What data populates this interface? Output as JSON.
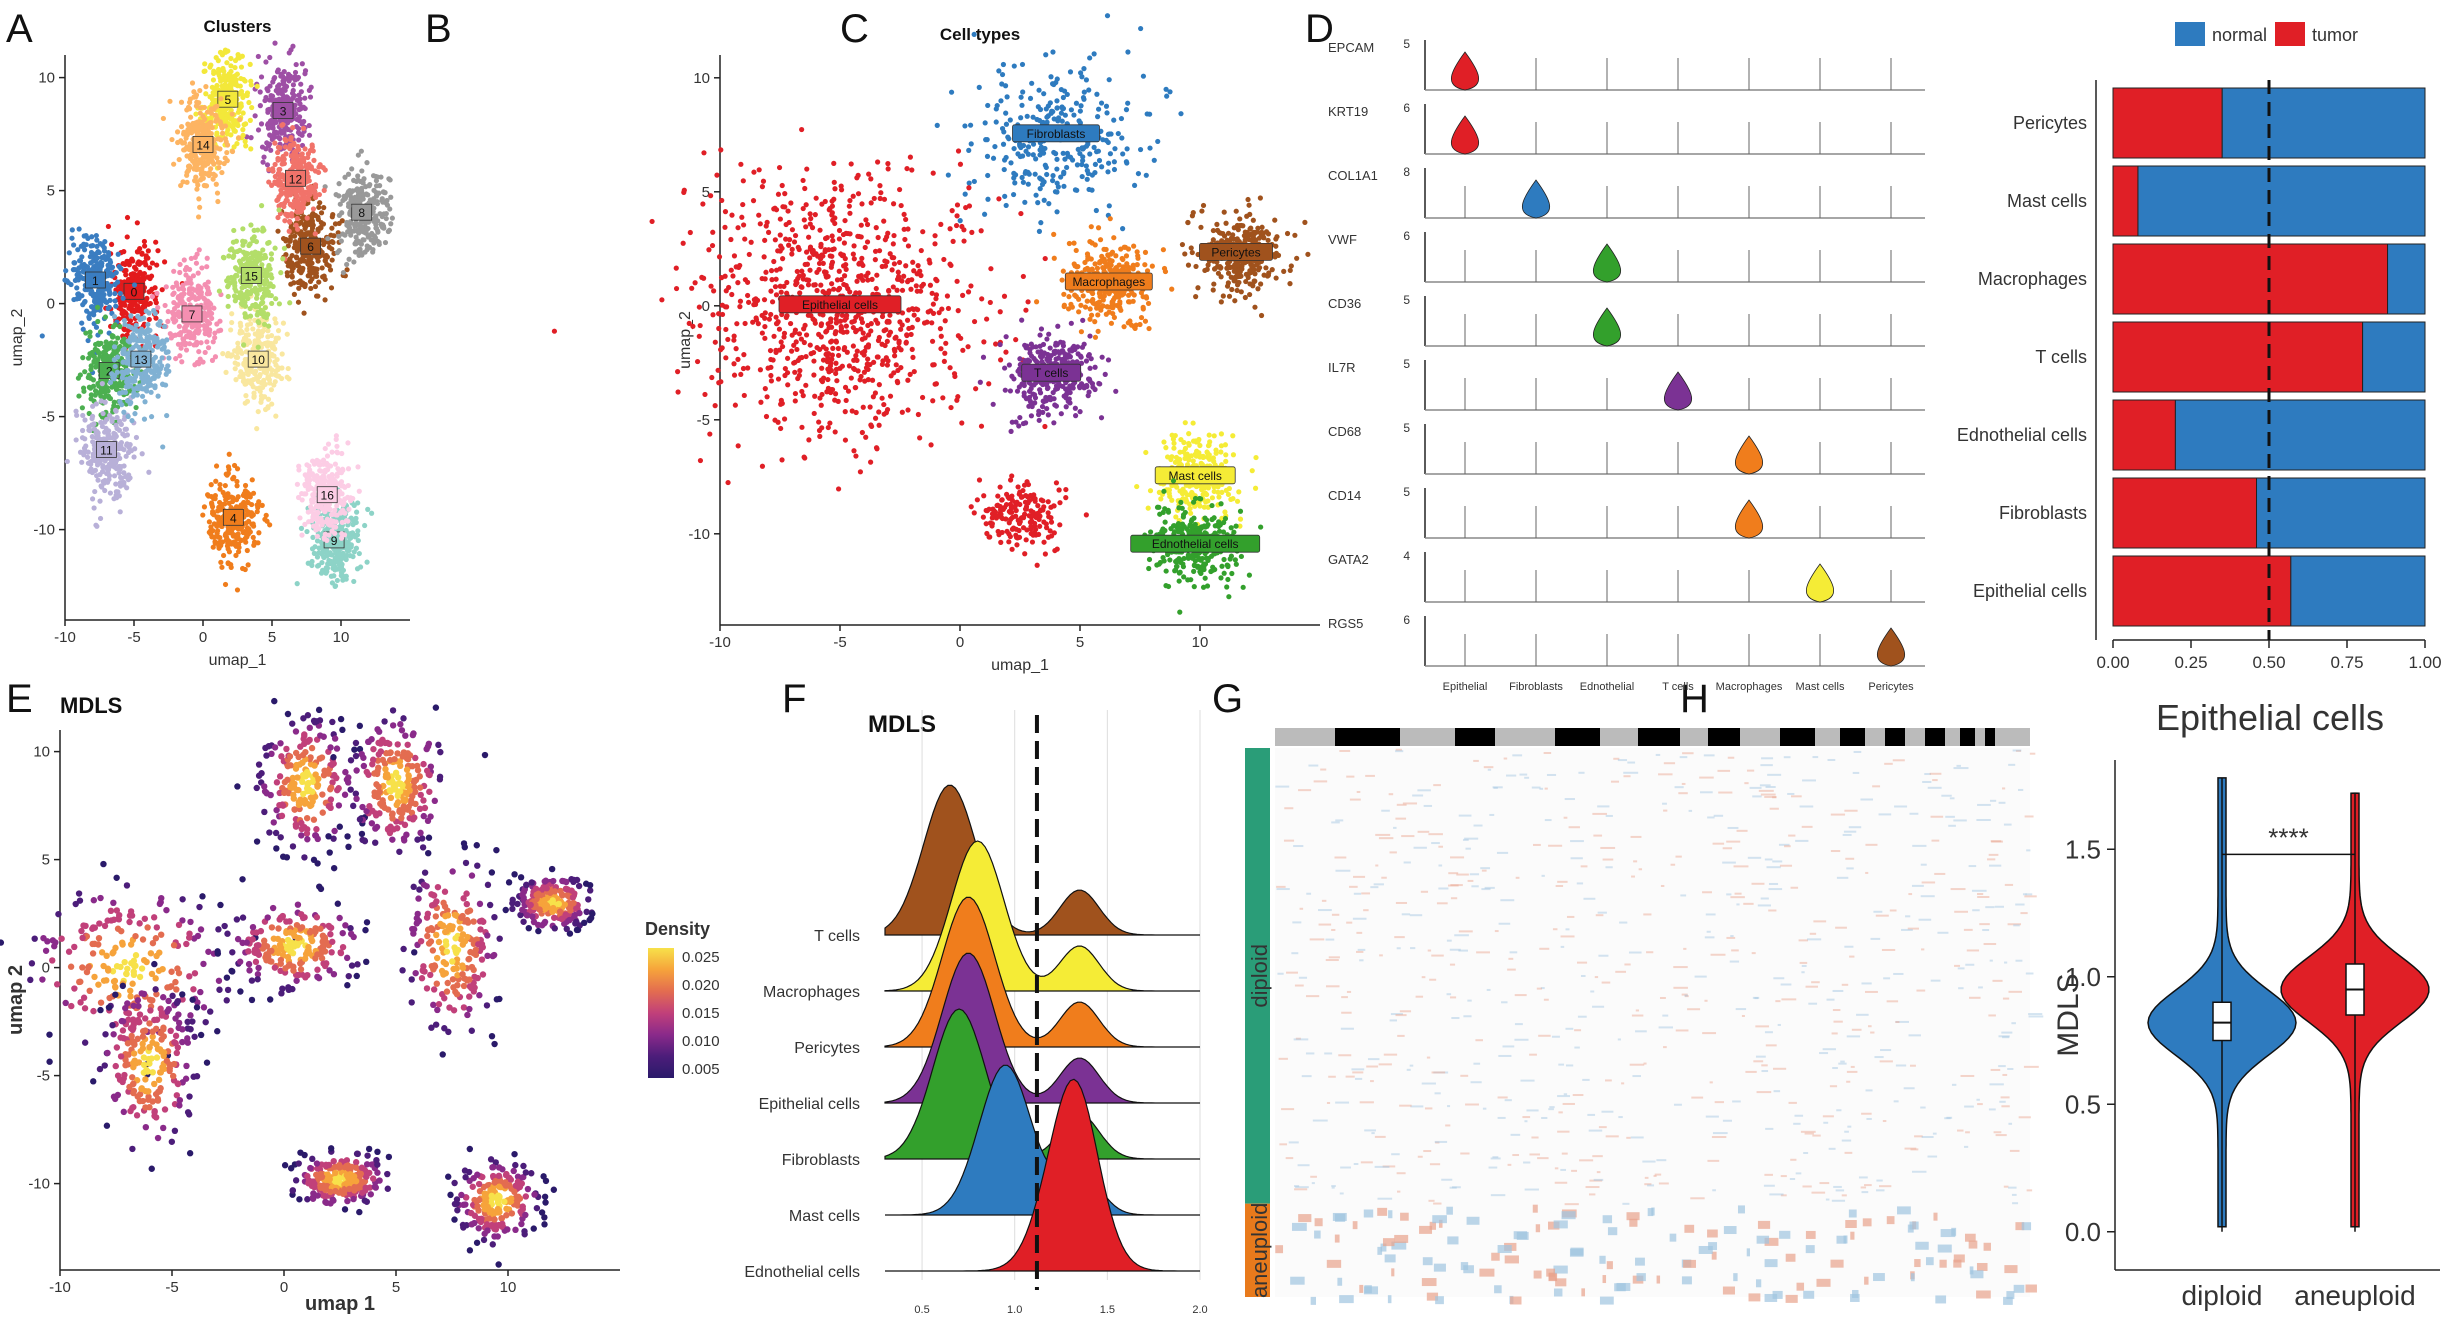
{
  "panel_letters": [
    "A",
    "B",
    "C",
    "D",
    "E",
    "F",
    "G",
    "H"
  ],
  "colors": {
    "normal": "#2e7bbf",
    "tumor": "#e01f26",
    "green": "#33a02c",
    "purple": "#7b3294",
    "orange": "#f07d1c",
    "yellow": "#f5ec36",
    "brown": "#a0521d",
    "teal": "#2a9d78"
  },
  "chart_data": [
    {
      "id": "A",
      "type": "scatter",
      "title": "Clusters",
      "xlabel": "umap_1",
      "ylabel": "umap_2",
      "xlim": [
        -10,
        15
      ],
      "ylim": [
        -14,
        11
      ],
      "xticks": [
        "-10",
        "-5",
        "0",
        "5",
        "10"
      ],
      "yticks": [
        "10",
        "5",
        "0",
        "-5",
        "-10"
      ],
      "clusters": [
        {
          "name": "0",
          "x": -5,
          "y": 0.5,
          "color": "#e31a1c"
        },
        {
          "name": "1",
          "x": -7.8,
          "y": 1,
          "color": "#3a7dc1"
        },
        {
          "name": "2",
          "x": -6.8,
          "y": -3,
          "color": "#4caf50"
        },
        {
          "name": "3",
          "x": 5.8,
          "y": 8.5,
          "color": "#9e4fa5"
        },
        {
          "name": "4",
          "x": 2.2,
          "y": -9.5,
          "color": "#f07d1c"
        },
        {
          "name": "5",
          "x": 1.8,
          "y": 9,
          "color": "#f3e83a"
        },
        {
          "name": "6",
          "x": 7.8,
          "y": 2.5,
          "color": "#a0521d"
        },
        {
          "name": "7",
          "x": -0.8,
          "y": -0.5,
          "color": "#f48fb1"
        },
        {
          "name": "8",
          "x": 11.5,
          "y": 4,
          "color": "#999999"
        },
        {
          "name": "9",
          "x": 9.5,
          "y": -10.5,
          "color": "#8dd3c7"
        },
        {
          "name": "10",
          "x": 4,
          "y": -2.5,
          "color": "#f9e79f"
        },
        {
          "name": "11",
          "x": -7,
          "y": -6.5,
          "color": "#b8b0d8"
        },
        {
          "name": "12",
          "x": 6.7,
          "y": 5.5,
          "color": "#f1736a"
        },
        {
          "name": "13",
          "x": -4.5,
          "y": -2.5,
          "color": "#80b1d3"
        },
        {
          "name": "14",
          "x": 0,
          "y": 7,
          "color": "#fdb462"
        },
        {
          "name": "15",
          "x": 3.5,
          "y": 1.2,
          "color": "#b3de69"
        },
        {
          "name": "16",
          "x": 9,
          "y": -8.5,
          "color": "#fccde5"
        }
      ]
    },
    {
      "id": "B",
      "type": "scatter",
      "title": "Cell types",
      "xlabel": "umap_1",
      "ylabel": "umap_2",
      "xlim": [
        -10,
        15
      ],
      "ylim": [
        -14,
        11
      ],
      "xticks": [
        "-10",
        "-5",
        "0",
        "5",
        "10"
      ],
      "yticks": [
        "10",
        "5",
        "0",
        "-5",
        "-10"
      ],
      "clusters": [
        {
          "name": "Fibroblasts",
          "x": 4,
          "y": 7.5,
          "color": "#2e7bbf"
        },
        {
          "name": "Epithelial cells",
          "x": -5,
          "y": 0,
          "color": "#e01f26"
        },
        {
          "name": "Macrophages",
          "x": 6.2,
          "y": 1,
          "color": "#f07d1c"
        },
        {
          "name": "Pericytes",
          "x": 11.5,
          "y": 2.3,
          "color": "#a0521d"
        },
        {
          "name": "T cells",
          "x": 3.8,
          "y": -3,
          "color": "#7b3294"
        },
        {
          "name": "Mast cells",
          "x": 9.8,
          "y": -7.5,
          "color": "#f5ec36"
        },
        {
          "name": "Ednothelial cells",
          "x": 9.8,
          "y": -10.5,
          "color": "#33a02c"
        }
      ]
    },
    {
      "id": "C",
      "type": "violin",
      "genes": [
        "EPCAM",
        "KRT19",
        "COL1A1",
        "VWF",
        "CD36",
        "IL7R",
        "CD68",
        "CD14",
        "GATA2",
        "RGS5"
      ],
      "gene_max": [
        "5",
        "6",
        "8",
        "6",
        "5",
        "5",
        "5",
        "5",
        "4",
        "6"
      ],
      "cell_types": [
        "Epithelial",
        "Fibroblasts",
        "Ednothelial",
        "T cells",
        "Macrophages",
        "Mast cells",
        "Pericytes"
      ],
      "expressed_in": [
        0,
        0,
        1,
        2,
        2,
        3,
        4,
        4,
        5,
        6
      ],
      "expr_color": [
        "#e01f26",
        "#e01f26",
        "#2e7bbf",
        "#33a02c",
        "#33a02c",
        "#7b3294",
        "#f07d1c",
        "#f07d1c",
        "#f5ec36",
        "#a0521d"
      ]
    },
    {
      "id": "D",
      "type": "bar",
      "stacked": true,
      "orientation": "horizontal",
      "legend": [
        "normal",
        "tumor"
      ],
      "categories": [
        "Pericytes",
        "Mast cells",
        "Macrophages",
        "T cells",
        "Ednothelial cells",
        "Fibroblasts",
        "Epithelial cells"
      ],
      "series": [
        {
          "name": "tumor",
          "values": [
            0.35,
            0.08,
            0.88,
            0.8,
            0.2,
            0.46,
            0.57
          ]
        },
        {
          "name": "normal",
          "values": [
            0.65,
            0.92,
            0.12,
            0.2,
            0.8,
            0.54,
            0.43
          ]
        }
      ],
      "xticks": [
        "0.00",
        "0.25",
        "0.50",
        "0.75",
        "1.00"
      ],
      "xlim": [
        0,
        1
      ],
      "vline": 0.5
    },
    {
      "id": "E",
      "type": "scatter",
      "title": "MDLS",
      "xlabel": "umap 1",
      "ylabel": "umap 2",
      "xlim": [
        -10,
        15
      ],
      "ylim": [
        -14,
        11
      ],
      "xticks": [
        "-10",
        "-5",
        "0",
        "5",
        "10"
      ],
      "yticks": [
        "10",
        "5",
        "0",
        "-5",
        "-10"
      ],
      "legend_title": "Density",
      "legend_ticks": [
        "0.025",
        "0.020",
        "0.015",
        "0.010",
        "0.005"
      ]
    },
    {
      "id": "F",
      "type": "area",
      "title": "MDLS",
      "subtype": "ridgeline",
      "categories": [
        "T cells",
        "Macrophages",
        "Pericytes",
        "Epithelial cells",
        "Fibroblasts",
        "Mast cells",
        "Ednothelial cells"
      ],
      "ridge_colors": [
        "#a0521d",
        "#f5ec36",
        "#f07d1c",
        "#7b3294",
        "#33a02c",
        "#2e7bbf",
        "#e01f26"
      ],
      "peaks": [
        0.65,
        0.8,
        0.75,
        0.75,
        0.7,
        0.95,
        1.3
      ],
      "xticks": [
        "0.5",
        "1.0",
        "1.5",
        "2.0"
      ],
      "xlim": [
        0.3,
        2.0
      ],
      "vline": 1.12
    },
    {
      "id": "G",
      "type": "heatmap",
      "row_groups": [
        "diploid",
        "aneuploid"
      ],
      "row_fraction": [
        0.83,
        0.17
      ]
    },
    {
      "id": "H",
      "type": "violin",
      "title": "Epithelial cells",
      "ylabel": "MDLS",
      "groups": [
        {
          "name": "diploid",
          "median": 0.82,
          "q1": 0.75,
          "q3": 0.9,
          "min": 0,
          "max": 1.78,
          "color": "#2e7bbf"
        },
        {
          "name": "aneuploid",
          "median": 0.95,
          "q1": 0.85,
          "q3": 1.05,
          "min": 0,
          "max": 1.72,
          "color": "#e01f26"
        }
      ],
      "ylim": [
        -0.15,
        1.85
      ],
      "yticks": [
        "0.0",
        "0.5",
        "1.0",
        "1.5"
      ],
      "significance": "****"
    }
  ]
}
